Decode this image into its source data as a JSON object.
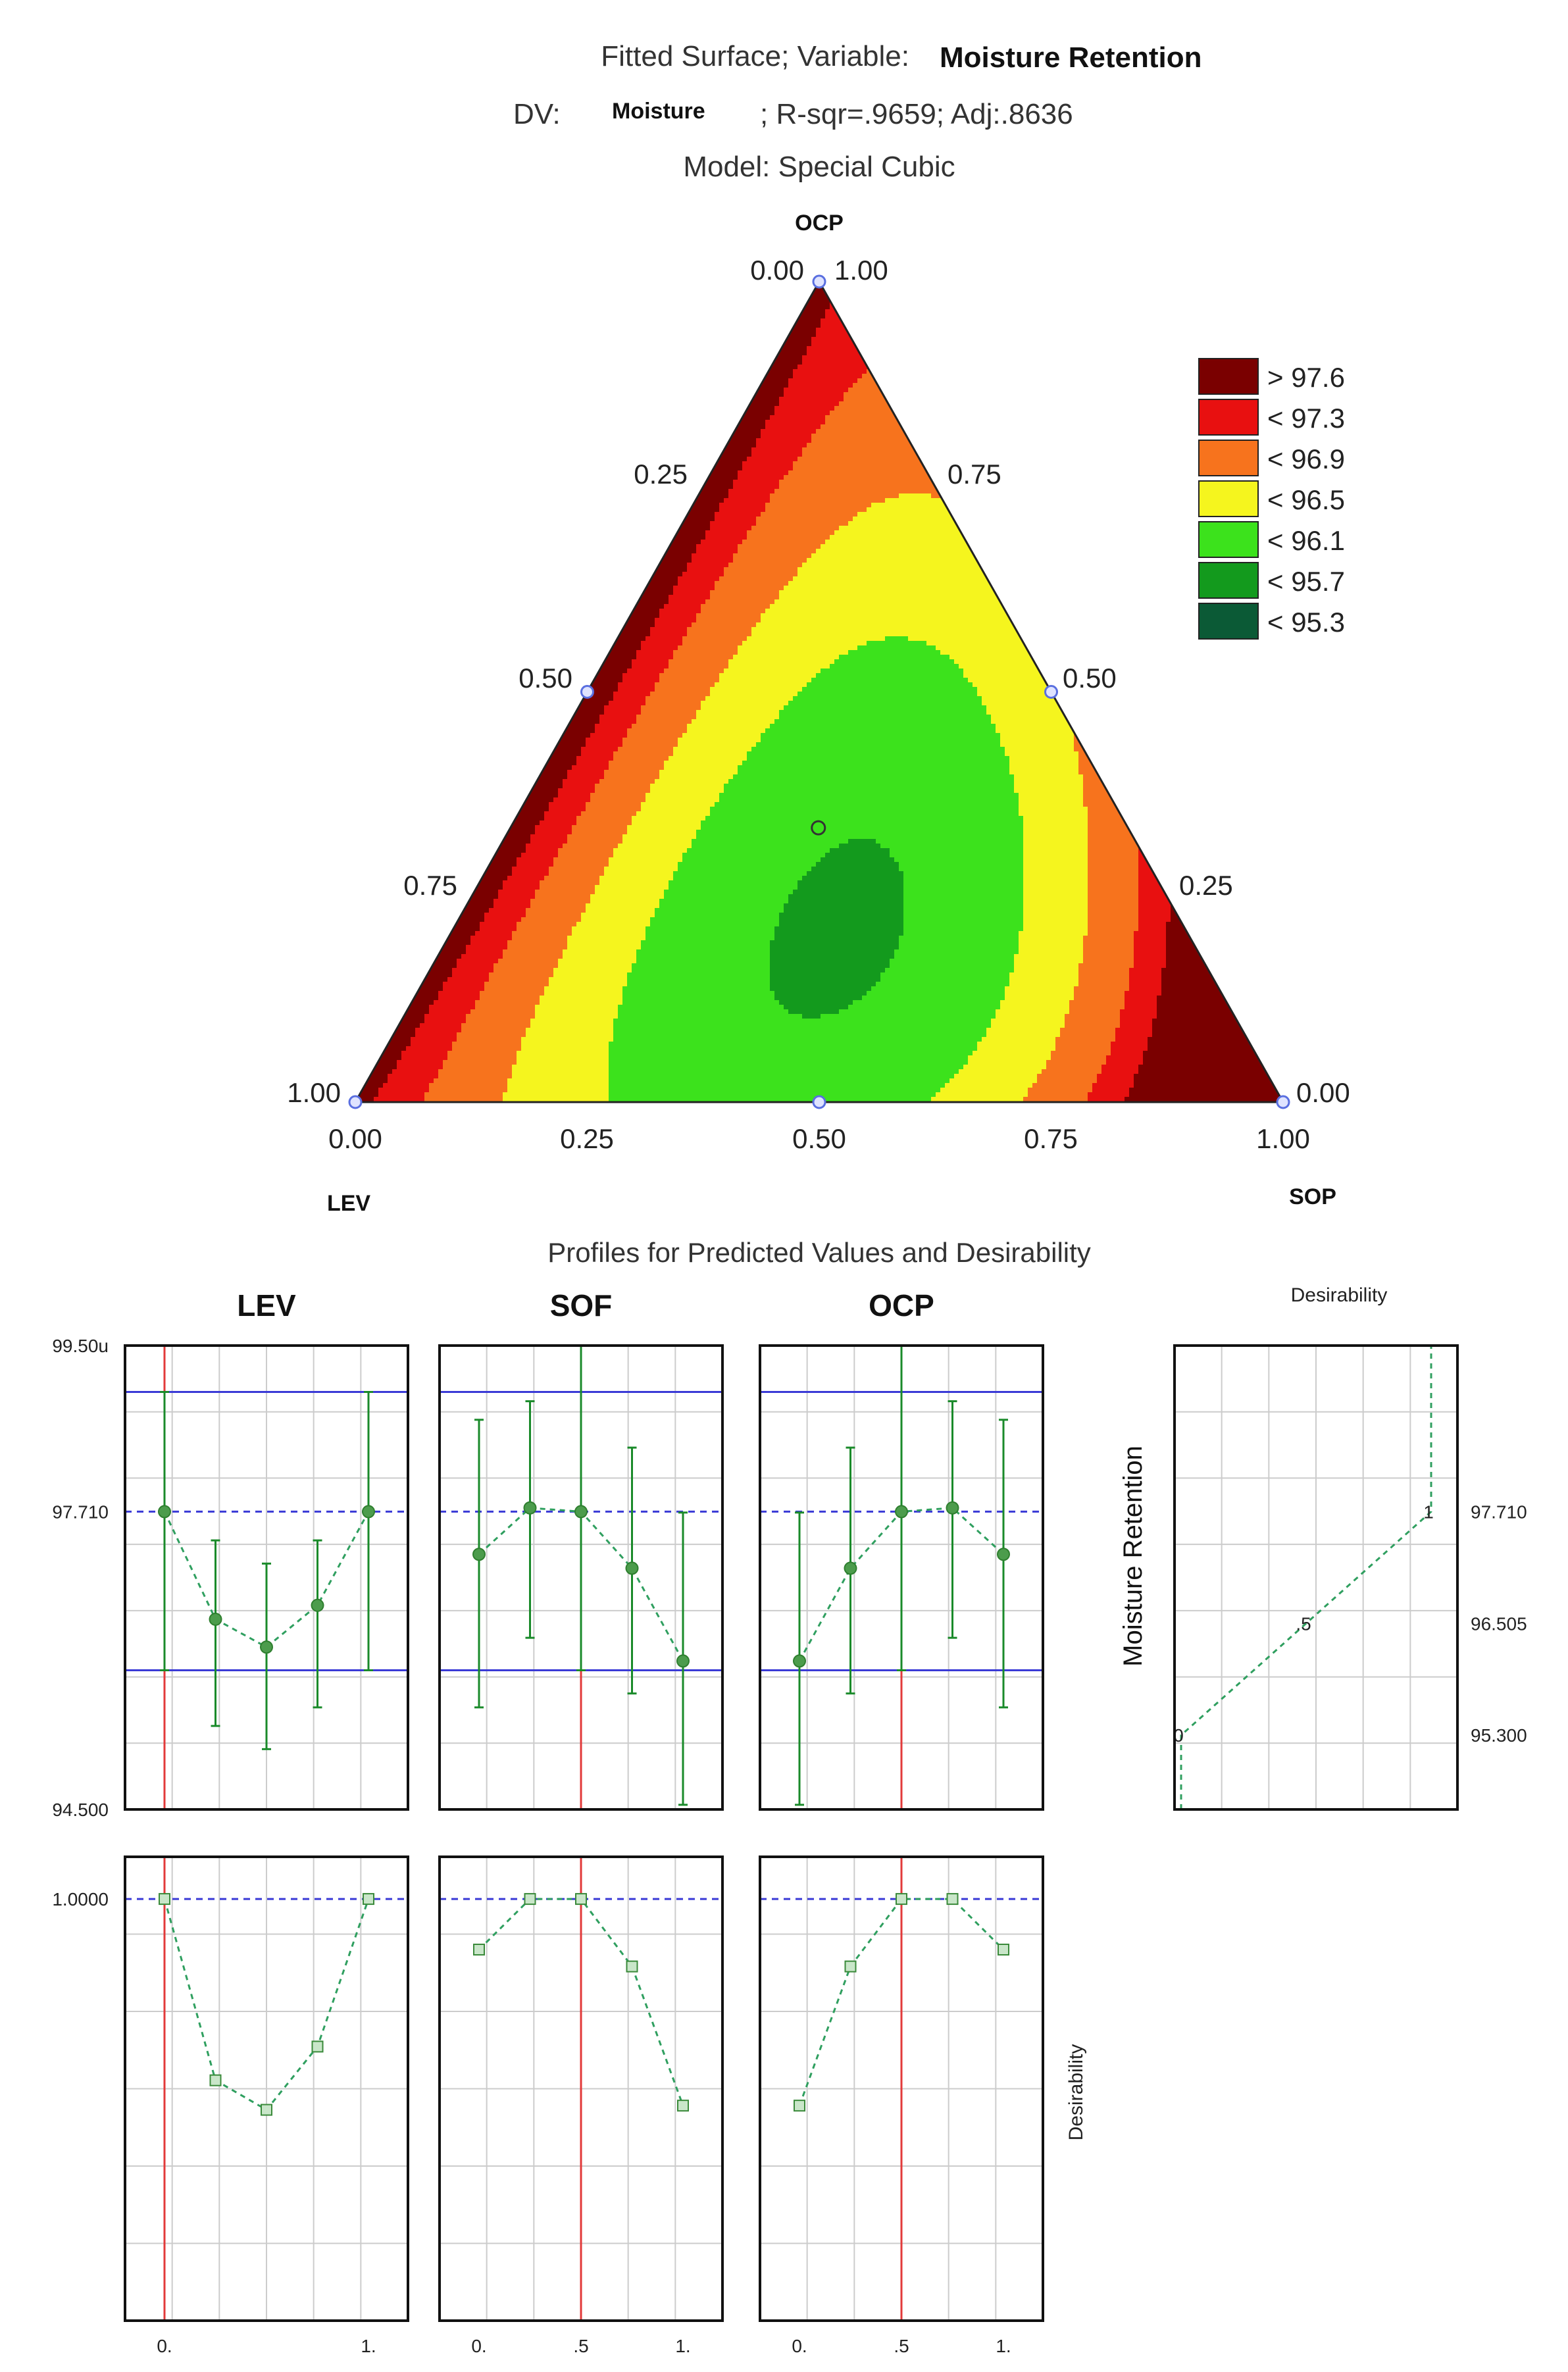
{
  "header": {
    "line1_prefix": "Fitted Surface; Variable:",
    "line1_variable": "Moisture Retention",
    "line2_prefix": "DV:",
    "line2_dv": "Moisture",
    "line2_stats": "; R-sqr=.9659; Adj:.8636",
    "line3": "Model: Special Cubic"
  },
  "chart_data": [
    {
      "type": "contour",
      "subtype": "ternary",
      "components": {
        "top": "OCP",
        "bottom_left": "LEV",
        "bottom_right": "SOP"
      },
      "left_edge_ticks": [
        "0.00",
        "0.25",
        "0.50",
        "0.75",
        "1.00"
      ],
      "right_edge_ticks": [
        "1.00",
        "0.75",
        "0.50",
        "0.25",
        "0.00"
      ],
      "bottom_edge_ticks": [
        "0.00",
        "0.25",
        "0.50",
        "0.75",
        "1.00"
      ],
      "legend_placement": "right",
      "legend": [
        {
          "label": "> 97.6",
          "color": "#7a0000"
        },
        {
          "label": "< 97.3",
          "color": "#e81010"
        },
        {
          "label": "< 96.9",
          "color": "#f7731d"
        },
        {
          "label": "< 96.5",
          "color": "#f5f51e"
        },
        {
          "label": "< 96.1",
          "color": "#3ce21c"
        },
        {
          "label": "< 95.7",
          "color": "#139a1d"
        },
        {
          "label": "< 95.3",
          "color": "#0b5a36"
        }
      ],
      "design_points": [
        {
          "LEV": 1,
          "SOP": 0,
          "OCP": 0
        },
        {
          "LEV": 0,
          "SOP": 1,
          "OCP": 0
        },
        {
          "LEV": 0,
          "SOP": 0,
          "OCP": 1
        },
        {
          "LEV": 0.5,
          "SOP": 0.5,
          "OCP": 0
        },
        {
          "LEV": 0.5,
          "SOP": 0,
          "OCP": 0.5
        },
        {
          "LEV": 0,
          "SOP": 0.5,
          "OCP": 0.5
        },
        {
          "LEV": 0.333,
          "SOP": 0.333,
          "OCP": 0.333
        }
      ]
    },
    {
      "type": "line",
      "title": "Profiles for Predicted Values and Desirability",
      "y_axis_label": "Moisture Retention",
      "y_ticks": [
        "99.50u",
        "97.710",
        "94.500"
      ],
      "ylim": [
        94.5,
        99.5
      ],
      "upper_limit": 99.0,
      "lower_limit": 96.0,
      "current_value": 97.71,
      "desirability_label": "Desirability",
      "desirability_ticks": [
        "1.0000"
      ],
      "desirability_ylim": [
        0,
        1.1
      ],
      "x_ticks_labels": [
        [
          "0.",
          "1."
        ],
        [
          "0.",
          ".5",
          "1."
        ],
        [
          "0.",
          ".5",
          "1."
        ]
      ],
      "x_ticks_values": [
        [
          0,
          1
        ],
        [
          0,
          0.5,
          1
        ],
        [
          0,
          0.5,
          1
        ]
      ],
      "x": [
        0,
        0.25,
        0.5,
        0.75,
        1
      ],
      "panels": [
        {
          "name": "LEV",
          "current": 0,
          "predicted": [
            97.71,
            96.55,
            96.25,
            96.7,
            97.71
          ],
          "ci_low": [
            96.0,
            95.4,
            95.15,
            95.6,
            96.0
          ],
          "ci_high": [
            99.0,
            97.4,
            97.15,
            97.4,
            99.0
          ],
          "desirability": [
            1.0,
            0.57,
            0.5,
            0.65,
            1.0
          ]
        },
        {
          "name": "SOF",
          "current": 0.5,
          "predicted": [
            97.25,
            97.75,
            97.71,
            97.1,
            96.1
          ],
          "ci_low": [
            95.6,
            96.35,
            96.0,
            95.75,
            94.55
          ],
          "ci_high": [
            98.7,
            98.9,
            99.5,
            98.4,
            97.7
          ],
          "desirability": [
            0.88,
            1.0,
            1.0,
            0.84,
            0.51
          ]
        },
        {
          "name": "OCP",
          "current": 0.5,
          "predicted": [
            96.1,
            97.1,
            97.71,
            97.75,
            97.25
          ],
          "ci_low": [
            94.55,
            95.75,
            96.0,
            96.35,
            95.6
          ],
          "ci_high": [
            97.7,
            98.4,
            99.5,
            98.9,
            98.7
          ],
          "desirability": [
            0.51,
            0.84,
            1.0,
            1.0,
            0.88
          ]
        }
      ]
    },
    {
      "type": "line",
      "title": "Desirability",
      "y_axis_label": "Moisture Retention",
      "y_ticks": [
        "97.710",
        "96.505",
        "95.300"
      ],
      "ylim": [
        94.5,
        99.5
      ],
      "points": [
        {
          "value": 95.3,
          "desirability": 0,
          "label": "0"
        },
        {
          "value": 96.505,
          "desirability": 0.5,
          "label": ".5"
        },
        {
          "value": 97.71,
          "desirability": 1,
          "label": "1"
        }
      ]
    }
  ],
  "colors": {
    "frame": "#111111",
    "grid": "#cccccc",
    "limit_line": "#3a3ad6",
    "current_line": "#e23a3a",
    "series": "#1a8a2a",
    "dashed_series": "#2f9f5f",
    "design_point": "#5a6fe0"
  }
}
